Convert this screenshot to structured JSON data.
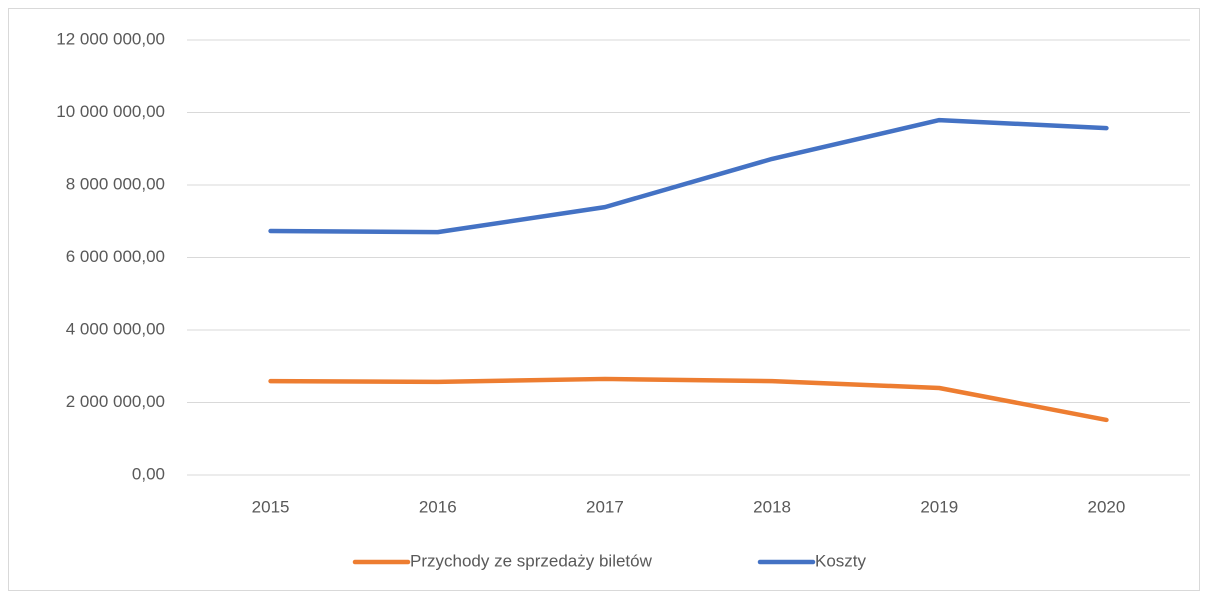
{
  "chart_data": {
    "type": "line",
    "categories": [
      "2015",
      "2016",
      "2017",
      "2018",
      "2019",
      "2020"
    ],
    "series": [
      {
        "name": "Przychody ze sprzedaży biletów",
        "color": "#ed7d31",
        "values": [
          2590000,
          2570000,
          2650000,
          2590000,
          2400000,
          1520000
        ]
      },
      {
        "name": "Koszty",
        "color": "#4472c4",
        "values": [
          6730000,
          6700000,
          7390000,
          8720000,
          9790000,
          9570000
        ]
      }
    ],
    "ylim": [
      0,
      12000000
    ],
    "yticks": [
      {
        "value": 0,
        "label": "0,00"
      },
      {
        "value": 2000000,
        "label": "2 000 000,00"
      },
      {
        "value": 4000000,
        "label": "4 000 000,00"
      },
      {
        "value": 6000000,
        "label": "6 000 000,00"
      },
      {
        "value": 8000000,
        "label": "8 000 000,00"
      },
      {
        "value": 10000000,
        "label": "10 000 000,00"
      },
      {
        "value": 12000000,
        "label": "12 000 000,00"
      }
    ],
    "grid": true,
    "legend": "bottom"
  }
}
